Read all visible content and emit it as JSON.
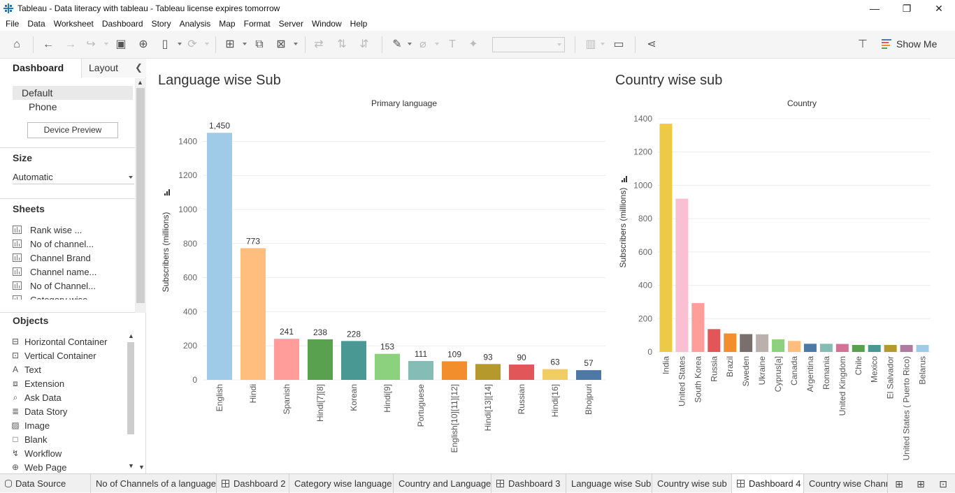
{
  "window": {
    "title": "Tableau - Data literacy with tableau - Tableau license expires tomorrow",
    "controls": {
      "minimize": "—",
      "restore": "❐",
      "close": "✕"
    }
  },
  "menu": [
    "File",
    "Data",
    "Worksheet",
    "Dashboard",
    "Story",
    "Analysis",
    "Map",
    "Format",
    "Server",
    "Window",
    "Help"
  ],
  "toolbar": {
    "show_me_label": "Show Me",
    "icons": [
      "home-icon",
      "undo-icon",
      "redo-icon",
      "replay-icon",
      "save-icon",
      "new-data-source-icon",
      "pause-updates-icon",
      "refresh-icon",
      "new-worksheet-icon",
      "duplicate-icon",
      "clear-icon",
      "swap-icon",
      "sort-ascending-icon",
      "sort-descending-icon",
      "highlight-icon",
      "attach-icon",
      "label-icon",
      "pin-icon",
      "fit-icon",
      "presentation-icon",
      "share-icon",
      "format-paint-icon"
    ]
  },
  "left_pane": {
    "tabs": {
      "dashboard": "Dashboard",
      "layout": "Layout"
    },
    "devices": {
      "default": "Default",
      "phone": "Phone",
      "preview_button": "Device Preview"
    },
    "size": {
      "title": "Size",
      "value": "Automatic"
    },
    "sheets": {
      "title": "Sheets",
      "items": [
        "Rank wise ...",
        "No of channel...",
        "Channel Brand",
        "Channel name...",
        "No of Channel...",
        "Category wise..."
      ]
    },
    "objects": {
      "title": "Objects",
      "items": [
        {
          "label": "Horizontal Container",
          "icon": "horizontal-container-icon"
        },
        {
          "label": "Vertical Container",
          "icon": "vertical-container-icon"
        },
        {
          "label": "Text",
          "icon": "text-icon"
        },
        {
          "label": "Extension",
          "icon": "extension-icon"
        },
        {
          "label": "Ask Data",
          "icon": "ask-data-icon"
        },
        {
          "label": "Data Story",
          "icon": "data-story-icon"
        },
        {
          "label": "Image",
          "icon": "image-icon"
        },
        {
          "label": "Blank",
          "icon": "blank-icon"
        },
        {
          "label": "Workflow",
          "icon": "workflow-icon"
        },
        {
          "label": "Web Page",
          "icon": "web-page-icon"
        }
      ]
    }
  },
  "dashboard": {
    "left_title": "Language wise Sub",
    "right_title": "Country wise sub"
  },
  "chart_data": [
    {
      "type": "bar",
      "title": "Language wise Sub",
      "xlabel": "Primary language",
      "ylabel": "Subscribers (millions)",
      "ylim": [
        0,
        1500
      ],
      "yticks": [
        0,
        200,
        400,
        600,
        800,
        1000,
        1200,
        1400
      ],
      "categories": [
        "English",
        "Hindi",
        "Spanish",
        "Hindi[7][8]",
        "Korean",
        "Hindi[9]",
        "Portuguese",
        "English[10][11][12]",
        "Hindi[13][14]",
        "Russian",
        "Hindi[16]",
        "Bhojpuri"
      ],
      "values": [
        1450,
        773,
        241,
        238,
        228,
        153,
        111,
        109,
        93,
        90,
        63,
        57
      ],
      "value_labels": [
        "1,450",
        "773",
        "241",
        "238",
        "228",
        "153",
        "111",
        "109",
        "93",
        "90",
        "63",
        "57"
      ],
      "colors": [
        "#a0cbe8",
        "#ffbe7d",
        "#ff9d9a",
        "#59a14f",
        "#499894",
        "#8cd17d",
        "#86bcb6",
        "#f28e2b",
        "#b6992d",
        "#e15759",
        "#f1ce63",
        "#4e79a7"
      ],
      "grid": true
    },
    {
      "type": "bar",
      "title": "Country wise sub",
      "xlabel": "Country",
      "ylabel": "Subscribers (millions)",
      "ylim": [
        0,
        1400
      ],
      "yticks": [
        0,
        200,
        400,
        600,
        800,
        1000,
        1200,
        1400
      ],
      "categories": [
        "India",
        "United States",
        "South Korea",
        "Russia",
        "Brazil",
        "Sweden",
        "Ukraine",
        "Cyprus[a]",
        "Canada",
        "Argentina",
        "Romania",
        "United Kingdom",
        "Chile",
        "Mexico",
        "El Salvador",
        "United States ( Puerto Rico)",
        "Belarus"
      ],
      "values": [
        1370,
        920,
        293,
        137,
        111,
        107,
        106,
        76,
        66,
        49,
        49,
        48,
        42,
        42,
        42,
        42,
        42
      ],
      "colors": [
        "#edc948",
        "#fabfd2",
        "#ff9d9a",
        "#e15759",
        "#f28e2b",
        "#79706e",
        "#bab0ac",
        "#8cd17d",
        "#ffbe7d",
        "#4e79a7",
        "#86bcb6",
        "#d37295",
        "#59a14f",
        "#499894",
        "#b6992d",
        "#b07aa1",
        "#a0cbe8"
      ],
      "grid": true
    }
  ],
  "bottom_tabs": [
    {
      "label": "Data Source",
      "kind": "datasource"
    },
    {
      "label": "No of Channels of a language",
      "kind": "sheet"
    },
    {
      "label": "Dashboard 2",
      "kind": "dashboard"
    },
    {
      "label": "Category wise language",
      "kind": "sheet"
    },
    {
      "label": "Country and Language",
      "kind": "sheet"
    },
    {
      "label": "Dashboard 3",
      "kind": "dashboard"
    },
    {
      "label": "Language wise Sub",
      "kind": "sheet"
    },
    {
      "label": "Country wise sub",
      "kind": "sheet"
    },
    {
      "label": "Dashboard 4",
      "kind": "dashboard",
      "active": true
    },
    {
      "label": "Country wise Channe",
      "kind": "sheet"
    }
  ]
}
